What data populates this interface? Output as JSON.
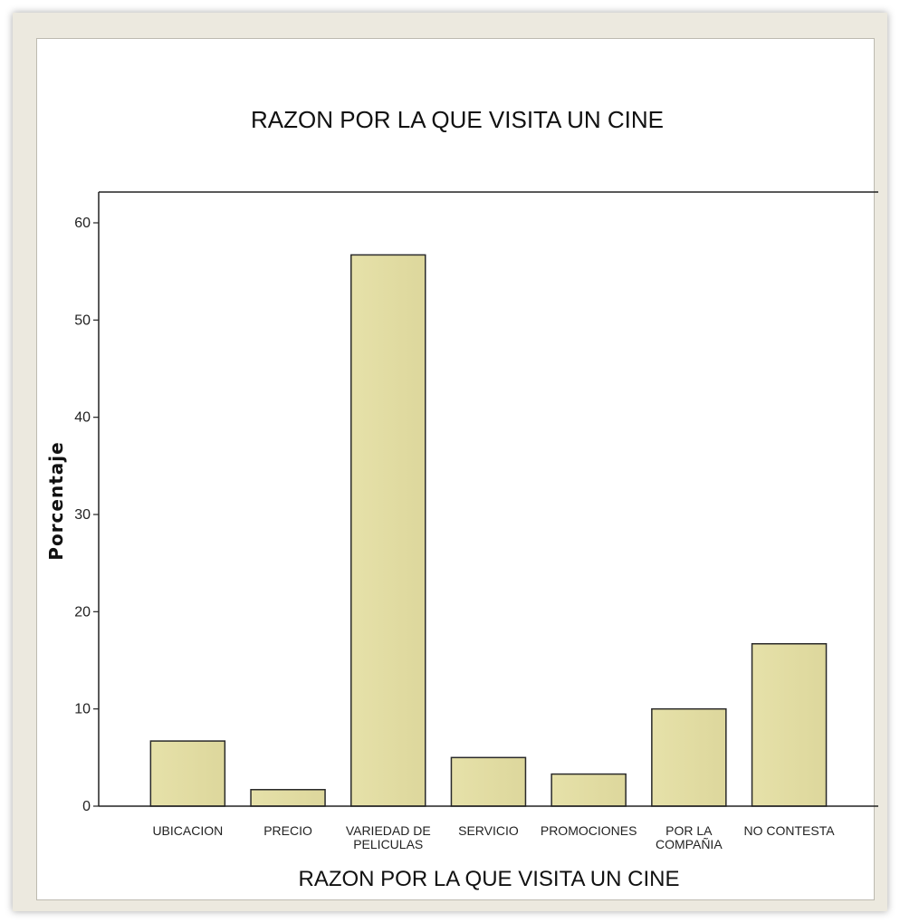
{
  "chart_data": {
    "type": "bar",
    "title": "RAZON POR LA QUE VISITA UN CINE",
    "xlabel": "RAZON POR LA QUE VISITA UN CINE",
    "ylabel": "Porcentaje",
    "categories": [
      [
        "UBICACION"
      ],
      [
        "PRECIO"
      ],
      [
        "VARIEDAD DE",
        "PELICULAS"
      ],
      [
        "SERVICIO"
      ],
      [
        "PROMOCIONES"
      ],
      [
        "POR LA",
        "COMPAÑIA"
      ],
      [
        "NO CONTESTA"
      ]
    ],
    "values": [
      6.7,
      1.7,
      56.7,
      5.0,
      3.3,
      10.0,
      16.7
    ],
    "ylim": [
      0,
      62
    ],
    "yticks": [
      0,
      10,
      20,
      30,
      40,
      50,
      60
    ],
    "grid": false,
    "colors": {
      "bar_fill": "#e2dda3",
      "bar_stroke": "#2a2a2a",
      "axis": "#222222"
    }
  }
}
